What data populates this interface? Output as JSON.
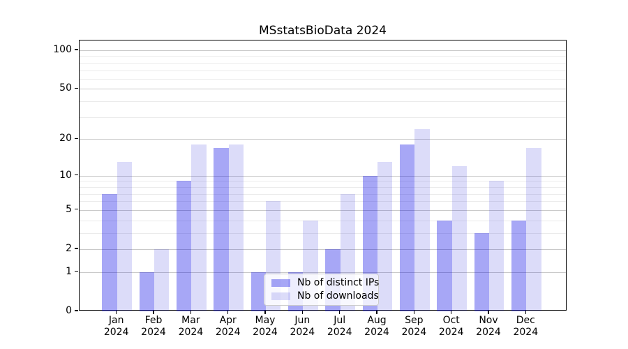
{
  "figure": {
    "title": "MSstatsBioData 2024"
  },
  "chart_data": {
    "type": "bar",
    "title": "MSstatsBioData 2024",
    "categories": [
      "Jan 2024",
      "Feb 2024",
      "Mar 2024",
      "Apr 2024",
      "May 2024",
      "Jun 2024",
      "Jul 2024",
      "Aug 2024",
      "Sep 2024",
      "Oct 2024",
      "Nov 2024",
      "Dec 2024"
    ],
    "months": [
      "Jan",
      "Feb",
      "Mar",
      "Apr",
      "May",
      "Jun",
      "Jul",
      "Aug",
      "Sep",
      "Oct",
      "Nov",
      "Dec"
    ],
    "year_label": "2024",
    "series": [
      {
        "name": "Nb of distinct IPs",
        "color": "rgba(0,0,230,0.345)",
        "solid_color": "#a7a7f5",
        "values": [
          7,
          1,
          9,
          17,
          1,
          1,
          2,
          10,
          18,
          4,
          3,
          4
        ]
      },
      {
        "name": "Nb of downloads",
        "color": "rgba(20,20,215,0.15)",
        "solid_color": "#dbdbf8",
        "values": [
          13,
          2,
          18,
          18,
          6,
          4,
          7,
          13,
          24,
          12,
          9,
          17
        ]
      }
    ],
    "xlabel": "",
    "ylabel": "",
    "yscale": "log1p",
    "ylim": [
      0,
      119
    ],
    "yticks_major": [
      0,
      1,
      2,
      5,
      10,
      20,
      50,
      100
    ],
    "yticks_minor": [
      3,
      4,
      6,
      7,
      8,
      9,
      30,
      40,
      60,
      70,
      80,
      90
    ],
    "grid": true,
    "legend_position": "lower center"
  },
  "colors": {
    "background": "#ffffff",
    "axis": "#000000",
    "major_grid": "#c9c9c9",
    "minor_grid": "#ebebeb",
    "bar_ips": "#a7a7f5",
    "bar_downloads": "#dbdbf8"
  }
}
